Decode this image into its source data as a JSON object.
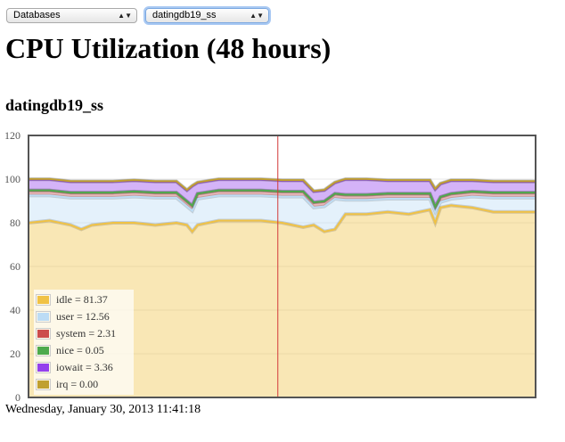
{
  "selects": {
    "database": {
      "value": "Databases"
    },
    "host": {
      "value": "datingdb19_ss"
    }
  },
  "page_title": "CPU Utilization (48 hours)",
  "subtitle": "datingdb19_ss",
  "timestamp": "Wednesday, January 30, 2013 11:41:18",
  "legend": [
    {
      "label": "idle = 81.37",
      "color": "#f0c245"
    },
    {
      "label": "user = 12.56",
      "color": "#bcdcf5"
    },
    {
      "label": "system = 2.31",
      "color": "#cc4d4d"
    },
    {
      "label": "nice = 0.05",
      "color": "#4daa4d"
    },
    {
      "label": "iowait = 3.36",
      "color": "#9440ed"
    },
    {
      "label": "irq = 0.00",
      "color": "#c0a030"
    }
  ],
  "chart_data": {
    "type": "area",
    "stacked": true,
    "ylim": [
      0,
      120
    ],
    "y_ticks": [
      "0",
      "20",
      "40",
      "60",
      "80",
      "100",
      "120"
    ],
    "xlim": [
      0,
      48
    ],
    "marker_x": 23.6,
    "grid": true,
    "legend_position": "bottom-left",
    "x": [
      0,
      2,
      4,
      5,
      6,
      8,
      10,
      12,
      14,
      15,
      15.5,
      16,
      18,
      20,
      22,
      24,
      26,
      27,
      28,
      29,
      30,
      32,
      34,
      36,
      38,
      38.5,
      39,
      40,
      42,
      44,
      46,
      48
    ],
    "series": [
      {
        "name": "idle",
        "color": "#f0c245",
        "values": [
          80,
          81,
          79,
          77,
          79,
          80,
          80,
          79,
          80,
          79,
          76,
          79,
          81,
          81,
          81,
          80,
          78,
          79,
          76,
          77,
          84,
          84,
          85,
          84,
          86,
          80,
          87,
          88,
          87,
          85,
          85,
          85
        ]
      },
      {
        "name": "user",
        "color": "#bcdcf5",
        "values": [
          12.5,
          11.5,
          12.5,
          14.5,
          12.5,
          11.5,
          12.0,
          12.5,
          11.5,
          8.5,
          9.5,
          12.0,
          11.5,
          11.5,
          11.5,
          12.0,
          14.0,
          8.0,
          11.5,
          14.0,
          6.5,
          6.5,
          6.0,
          7.0,
          5.0,
          5.0,
          2.5,
          3.0,
          5.0,
          6.5,
          6.5,
          6.5
        ]
      },
      {
        "name": "system",
        "color": "#cc4d4d",
        "values": [
          2.3,
          2.3,
          2.3,
          2.3,
          2.3,
          2.3,
          2.3,
          2.3,
          2.3,
          2.3,
          2.3,
          2.3,
          2.3,
          2.3,
          2.3,
          2.3,
          2.3,
          2.3,
          2.3,
          2.3,
          2.3,
          2.3,
          2.3,
          2.3,
          2.3,
          2.3,
          2.3,
          2.3,
          2.3,
          2.3,
          2.3,
          2.3
        ]
      },
      {
        "name": "nice",
        "color": "#4daa4d",
        "values": [
          0.05,
          0.05,
          0.05,
          0.05,
          0.05,
          0.05,
          0.05,
          0.05,
          0.05,
          0.05,
          0.05,
          0.05,
          0.05,
          0.05,
          0.05,
          0.05,
          0.05,
          0.05,
          0.05,
          0.05,
          0.05,
          0.05,
          0.05,
          0.05,
          0.05,
          0.05,
          0.05,
          0.05,
          0.05,
          0.05,
          0.05,
          0.05
        ]
      },
      {
        "name": "iowait",
        "color": "#9440ed",
        "values": [
          5,
          5,
          5,
          5,
          5,
          5,
          5,
          5,
          5,
          5,
          9,
          5,
          5,
          5,
          5,
          5,
          5,
          5,
          5,
          5,
          7,
          7,
          6,
          6,
          6,
          8,
          6,
          6,
          5,
          5,
          5,
          5
        ]
      },
      {
        "name": "irq",
        "color": "#c0a030",
        "values": [
          0.2,
          0.2,
          0.2,
          0.2,
          0.2,
          0.2,
          0.2,
          0.2,
          0.2,
          0.2,
          0.2,
          0.2,
          0.2,
          0.2,
          0.2,
          0.2,
          0.2,
          0.2,
          0.2,
          0.2,
          0.2,
          0.2,
          0.2,
          0.2,
          0.2,
          0.2,
          0.2,
          0.2,
          0.2,
          0.2,
          0.2,
          0.2
        ]
      }
    ]
  }
}
